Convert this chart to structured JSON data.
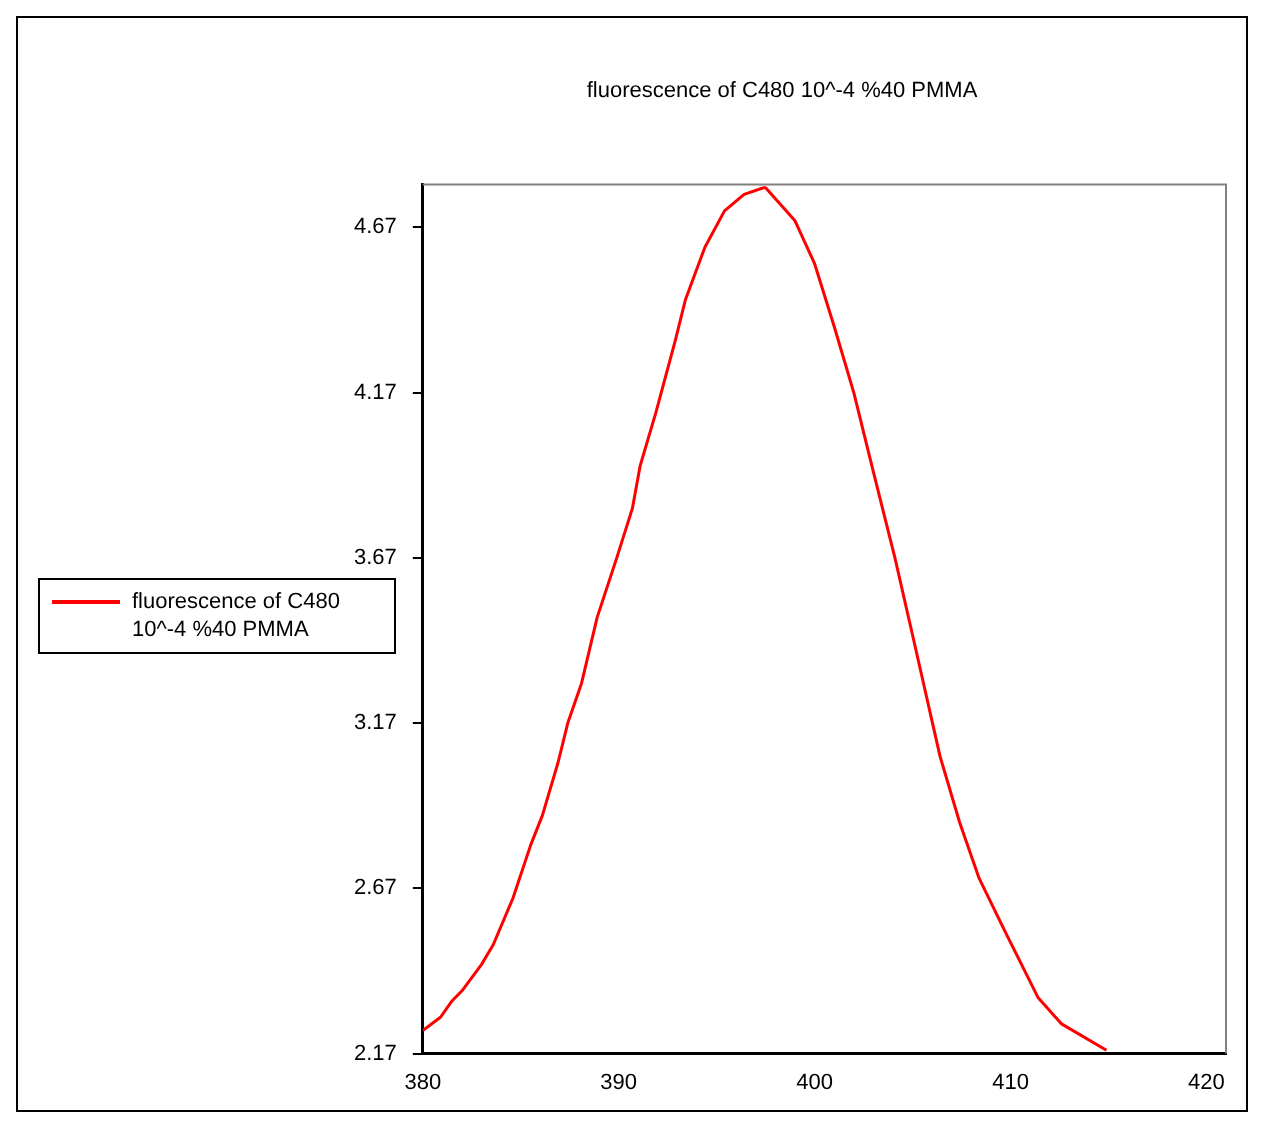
{
  "chart_data": {
    "type": "line",
    "title": "fluorescence of C480 10^-4 %40 PMMA",
    "xlim": [
      380,
      421
    ],
    "xticks": [
      380,
      390,
      400,
      410,
      420
    ],
    "ylim": [
      2.17,
      4.8
    ],
    "yticks": [
      2.17,
      2.67,
      3.17,
      3.67,
      4.17,
      4.67
    ],
    "grid": false,
    "legend": "left",
    "marker": "none",
    "line_style": "solid",
    "series": [
      {
        "name": "fluorescence of C480 10^-4 %40 PMMA",
        "color": "#ff0000",
        "x": [
          380,
          380.9,
          381.5,
          382.0,
          383.0,
          383.6,
          384.6,
          385.5,
          386.1,
          386.9,
          387.4,
          388.1,
          388.9,
          389.9,
          390.7,
          391.1,
          391.9,
          392.9,
          393.4,
          394.4,
          395.4,
          396.4,
          397.4,
          397.5,
          399.0,
          400.0,
          401.0,
          402.0,
          403.0,
          404.1,
          405.1,
          406.4,
          407.4,
          408.4,
          409.8,
          411.4,
          412.6,
          414.9
        ],
        "values": [
          2.24,
          2.28,
          2.33,
          2.36,
          2.44,
          2.5,
          2.64,
          2.8,
          2.89,
          3.05,
          3.17,
          3.29,
          3.49,
          3.67,
          3.82,
          3.95,
          4.11,
          4.33,
          4.45,
          4.61,
          4.72,
          4.77,
          4.79,
          4.79,
          4.69,
          4.56,
          4.37,
          4.17,
          3.93,
          3.67,
          3.41,
          3.07,
          2.87,
          2.7,
          2.53,
          2.34,
          2.26,
          2.18
        ]
      }
    ]
  }
}
